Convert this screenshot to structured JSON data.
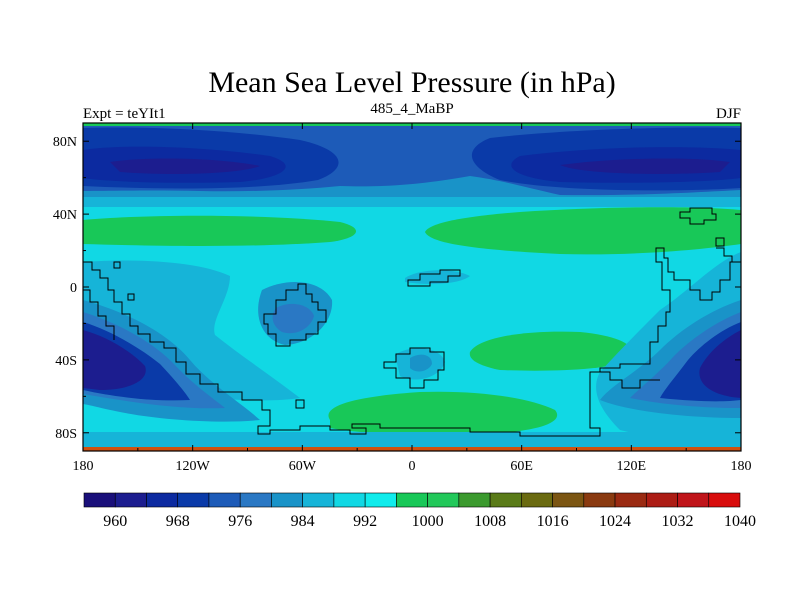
{
  "chart_data": {
    "type": "heatmap",
    "title": "Mean Sea Level Pressure (in hPa)",
    "left_label": "Expt = teYIt1",
    "center_label": "485_4_MaBP",
    "right_label": "DJF",
    "x_ticks": [
      "180",
      "120W",
      "60W",
      "0",
      "60E",
      "120E",
      "180"
    ],
    "x_tick_values": [
      -180,
      -120,
      -60,
      0,
      60,
      120,
      180
    ],
    "y_ticks": [
      "80N",
      "40N",
      "0",
      "40S",
      "80S"
    ],
    "y_tick_values": [
      80,
      40,
      0,
      -40,
      -80
    ],
    "xlim": [
      -180,
      180
    ],
    "ylim": [
      -90,
      90
    ],
    "colorbar": {
      "labels": [
        "960",
        "968",
        "976",
        "984",
        "992",
        "1000",
        "1008",
        "1016",
        "1024",
        "1032",
        "1040"
      ],
      "levels": [
        960,
        964,
        968,
        972,
        976,
        980,
        984,
        988,
        992,
        996,
        1000,
        1004,
        1008,
        1012,
        1016,
        1020,
        1024,
        1028,
        1032,
        1036,
        1040
      ],
      "colors": [
        "#1a0f7a",
        "#1c1d8f",
        "#0c2aa0",
        "#0a3aa8",
        "#1d5bb8",
        "#2a78c4",
        "#1993c8",
        "#16b4d8",
        "#11d8e4",
        "#10ecec",
        "#18c858",
        "#22c85a",
        "#3b9a2e",
        "#5a7b18",
        "#6a6a10",
        "#7b5512",
        "#8a3a10",
        "#9a2a12",
        "#ac1c14",
        "#c0141a",
        "#d80c0c"
      ]
    }
  }
}
